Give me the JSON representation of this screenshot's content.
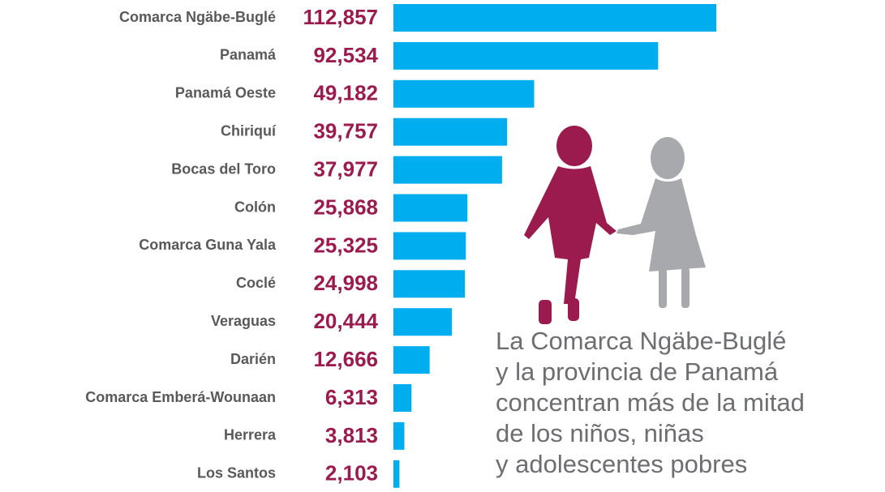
{
  "chart_data": {
    "type": "hbar",
    "categories": [
      "Comarca Ngäbe-Buglé",
      "Panamá",
      "Panamá Oeste",
      "Chiriquí",
      "Bocas del Toro",
      "Colón",
      "Comarca Guna Yala",
      "Coclé",
      "Veraguas",
      "Darién",
      "Comarca Emberá-Wounaan",
      "Herrera",
      "Los Santos"
    ],
    "values": [
      112857,
      92534,
      49182,
      39757,
      37977,
      25868,
      25325,
      24998,
      20444,
      12666,
      6313,
      3813,
      2103
    ],
    "value_labels": [
      "112,857",
      "92,534",
      "49,182",
      "39,757",
      "37,977",
      "25,868",
      "25,325",
      "24,998",
      "20,444",
      "12,666",
      "6,313",
      "3,813",
      "2,103"
    ],
    "color": "#00aeef",
    "value_label_color": "#9b1b4f",
    "annotation": [
      "La Comarca Ngäbe-Buglé",
      "y la provincia de Panamá",
      "concentran más de la mitad",
      "de los niños, niñas",
      "y adolescentes pobres"
    ]
  }
}
